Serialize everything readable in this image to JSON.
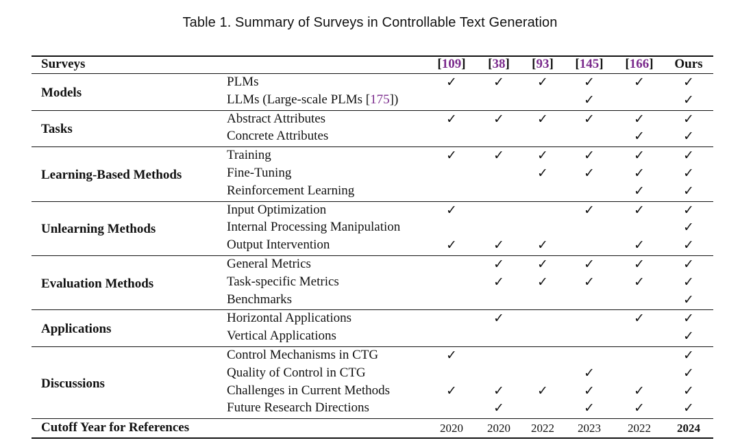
{
  "caption": "Table 1.  Summary of Surveys in Controllable Text Generation",
  "header_label": "Surveys",
  "columns": [
    {
      "ref": "109"
    },
    {
      "ref": "38"
    },
    {
      "ref": "93"
    },
    {
      "ref": "145"
    },
    {
      "ref": "166"
    },
    {
      "label": "Ours"
    }
  ],
  "check_symbol": "✓",
  "groups": [
    {
      "name": "Models",
      "rows": [
        {
          "label": "PLMs",
          "checks": [
            1,
            1,
            1,
            1,
            1,
            1
          ]
        },
        {
          "label_pre": "LLMs (Large-scale PLMs [",
          "label_ref": "175",
          "label_post": "])",
          "checks": [
            0,
            0,
            0,
            1,
            0,
            1
          ]
        }
      ]
    },
    {
      "name": "Tasks",
      "rows": [
        {
          "label": "Abstract Attributes",
          "checks": [
            1,
            1,
            1,
            1,
            1,
            1
          ]
        },
        {
          "label": "Concrete Attributes",
          "checks": [
            0,
            0,
            0,
            0,
            1,
            1
          ]
        }
      ]
    },
    {
      "name": "Learning-Based Methods",
      "rows": [
        {
          "label": "Training",
          "checks": [
            1,
            1,
            1,
            1,
            1,
            1
          ]
        },
        {
          "label": "Fine-Tuning",
          "checks": [
            0,
            0,
            1,
            1,
            1,
            1
          ]
        },
        {
          "label": "Reinforcement Learning",
          "checks": [
            0,
            0,
            0,
            0,
            1,
            1
          ]
        }
      ]
    },
    {
      "name": "Unlearning Methods",
      "rows": [
        {
          "label": "Input Optimization",
          "checks": [
            1,
            0,
            0,
            1,
            1,
            1
          ]
        },
        {
          "label": "Internal Processing Manipulation",
          "checks": [
            0,
            0,
            0,
            0,
            0,
            1
          ]
        },
        {
          "label": "Output Intervention",
          "checks": [
            1,
            1,
            1,
            0,
            1,
            1
          ]
        }
      ]
    },
    {
      "name": "Evaluation Methods",
      "rows": [
        {
          "label": "General Metrics",
          "checks": [
            0,
            1,
            1,
            1,
            1,
            1
          ]
        },
        {
          "label": "Task-specific Metrics",
          "checks": [
            0,
            1,
            1,
            1,
            1,
            1
          ]
        },
        {
          "label": "Benchmarks",
          "checks": [
            0,
            0,
            0,
            0,
            0,
            1
          ]
        }
      ]
    },
    {
      "name": "Applications",
      "rows": [
        {
          "label": "Horizontal Applications",
          "checks": [
            0,
            1,
            0,
            0,
            1,
            1
          ]
        },
        {
          "label": "Vertical Applications",
          "checks": [
            0,
            0,
            0,
            0,
            0,
            1
          ]
        }
      ]
    },
    {
      "name": "Discussions",
      "rows": [
        {
          "label": "Control Mechanisms in CTG",
          "checks": [
            1,
            0,
            0,
            0,
            0,
            1
          ]
        },
        {
          "label": "Quality of Control in CTG",
          "checks": [
            0,
            0,
            0,
            1,
            0,
            1
          ]
        },
        {
          "label": "Challenges in Current Methods",
          "checks": [
            1,
            1,
            1,
            1,
            1,
            1
          ]
        },
        {
          "label": "Future Research Directions",
          "checks": [
            0,
            1,
            0,
            1,
            1,
            1
          ]
        }
      ]
    }
  ],
  "footer": {
    "label": "Cutoff Year for References",
    "years": [
      "2020",
      "2020",
      "2022",
      "2023",
      "2022",
      "2024"
    ]
  }
}
